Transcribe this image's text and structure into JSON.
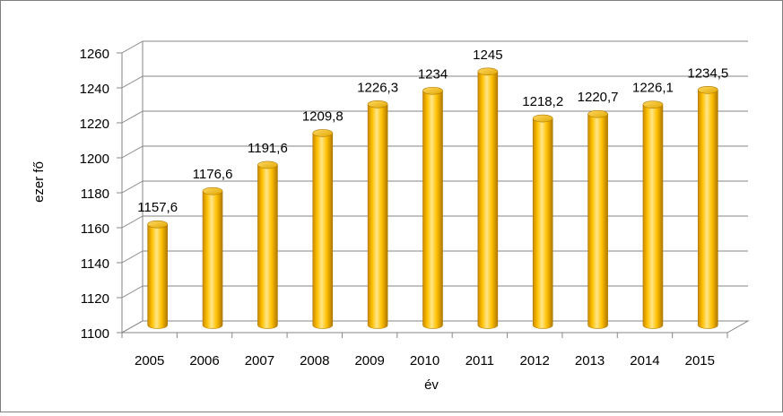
{
  "chart_data": {
    "type": "bar",
    "categories": [
      "2005",
      "2006",
      "2007",
      "2008",
      "2009",
      "2010",
      "2011",
      "2012",
      "2013",
      "2014",
      "2015"
    ],
    "values": [
      1157.6,
      1176.6,
      1191.6,
      1209.8,
      1226.3,
      1234,
      1245,
      1218.2,
      1220.7,
      1226.1,
      1234.5
    ],
    "value_labels": [
      "1157,6",
      "1176,6",
      "1191,6",
      "1209,8",
      "1226,3",
      "1234",
      "1245",
      "1218,2",
      "1220,7",
      "1226,1",
      "1234,5"
    ],
    "ylabel": "ezer fő",
    "xlabel": "év",
    "ylim": [
      1100,
      1260
    ],
    "yticks": [
      1100,
      1120,
      1140,
      1160,
      1180,
      1200,
      1220,
      1240,
      1260
    ],
    "grid": true,
    "bar_color": "#ffc000",
    "legend": "none"
  }
}
